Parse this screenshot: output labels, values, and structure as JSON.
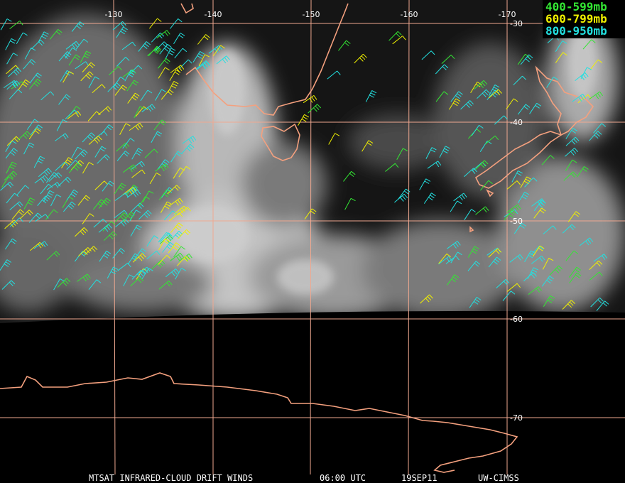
{
  "map": {
    "longitude_labels": [
      "-130",
      "-140",
      "-150",
      "-160",
      "-170"
    ],
    "latitude_labels": [
      "-30",
      "-40",
      "-50",
      "-60",
      "-70"
    ],
    "legend": [
      "400-599mb",
      "600-799mb",
      "800-950mb"
    ],
    "footer": [
      "MTSAT INFRARED-CLOUD DRIFT WINDS",
      "06:00 UTC",
      "19SEP11",
      "UW-CIMSS"
    ]
  }
}
